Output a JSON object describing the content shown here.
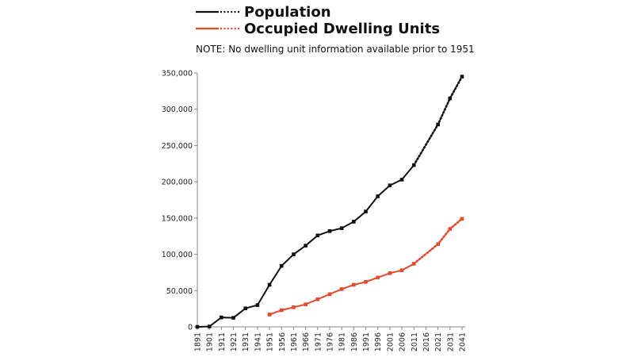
{
  "chart_data": {
    "type": "line",
    "title": "",
    "note": "NOTE: No dwelling unit information available prior to 1951",
    "xlabel": "",
    "ylabel": "",
    "ylim": [
      0,
      350000
    ],
    "yticks": [
      "0",
      "50,000",
      "100,000",
      "150,000",
      "200,000",
      "250,000",
      "300,000",
      "350,000"
    ],
    "ytick_values": [
      0,
      50000,
      100000,
      150000,
      200000,
      250000,
      300000,
      350000
    ],
    "x": [
      1891,
      1901,
      1911,
      1921,
      1931,
      1941,
      1951,
      1956,
      1961,
      1966,
      1971,
      1976,
      1981,
      1986,
      1991,
      1996,
      2001,
      2006,
      2011,
      2016,
      2021,
      2031,
      2041
    ],
    "xtick_labels": [
      "1891",
      "1901",
      "1911",
      "1921",
      "1931",
      "1941",
      "1951",
      "1956",
      "1961",
      "1966",
      "1971",
      "1976",
      "1981",
      "1986",
      "1991",
      "1996",
      "2001",
      "2006",
      "2011",
      "2016",
      "2021",
      "2031",
      "2041"
    ],
    "legend_position": "top",
    "grid": false,
    "series": [
      {
        "name": "Population",
        "color": "#111111",
        "projection_from": 2011,
        "points": [
          [
            1891,
            0
          ],
          [
            1901,
            500
          ],
          [
            1911,
            13000
          ],
          [
            1921,
            12500
          ],
          [
            1931,
            25500
          ],
          [
            1941,
            30000
          ],
          [
            1951,
            58000
          ],
          [
            1956,
            84000
          ],
          [
            1961,
            100000
          ],
          [
            1966,
            112000
          ],
          [
            1971,
            126000
          ],
          [
            1976,
            132000
          ],
          [
            1981,
            136000
          ],
          [
            1986,
            145000
          ],
          [
            1991,
            159000
          ],
          [
            1996,
            180000
          ],
          [
            2001,
            195000
          ],
          [
            2006,
            203000
          ],
          [
            2011,
            223000
          ],
          [
            2021,
            279000
          ],
          [
            2031,
            315000
          ],
          [
            2041,
            345000
          ]
        ]
      },
      {
        "name": "Occupied Dwelling Units",
        "color": "#e8472a",
        "projection_from": 2011,
        "points": [
          [
            1951,
            17000
          ],
          [
            1956,
            23000
          ],
          [
            1961,
            27000
          ],
          [
            1966,
            31000
          ],
          [
            1971,
            38000
          ],
          [
            1976,
            45000
          ],
          [
            1981,
            52000
          ],
          [
            1986,
            58000
          ],
          [
            1991,
            62000
          ],
          [
            1996,
            68000
          ],
          [
            2001,
            74000
          ],
          [
            2006,
            78000
          ],
          [
            2011,
            87000
          ],
          [
            2021,
            114000
          ],
          [
            2031,
            135000
          ],
          [
            2041,
            149000
          ]
        ]
      }
    ]
  }
}
